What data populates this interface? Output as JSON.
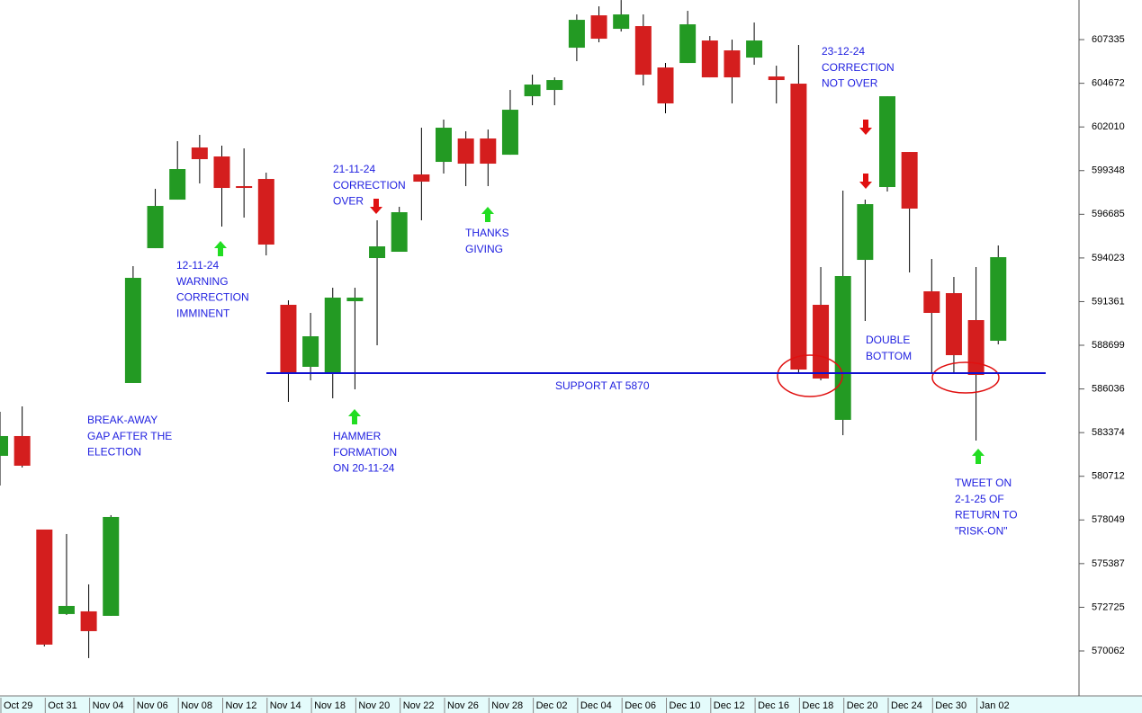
{
  "chart_data": {
    "type": "candlestick",
    "categories": [
      "Oct 29",
      null,
      "Oct 31",
      null,
      "Nov 04",
      null,
      "Nov 06",
      null,
      "Nov 08",
      null,
      "Nov 12",
      null,
      "Nov 14",
      null,
      "Nov 18",
      null,
      "Nov 20",
      null,
      "Nov 22",
      null,
      "Nov 26",
      null,
      "Nov 28",
      null,
      "Dec 02",
      null,
      "Dec 04",
      null,
      "Dec 06",
      null,
      "Dec 10",
      null,
      "Dec 12",
      null,
      "Dec 16",
      null,
      "Dec 18",
      null,
      "Dec 20",
      null,
      "Dec 24",
      null,
      "Dec 30",
      null,
      "Jan 02",
      null
    ],
    "open": [
      581958,
      583164,
      577464,
      572312,
      572476,
      572202,
      586398,
      594619,
      597579,
      600758,
      600210,
      598402,
      598840,
      591166,
      587385,
      587001,
      591385,
      594016,
      594400,
      599114,
      599881,
      601306,
      601306,
      600317,
      603882,
      604266,
      606842,
      608815,
      607993,
      608158,
      605636,
      605910,
      607281,
      606678,
      606239,
      605088,
      604650,
      591166,
      584151,
      593906,
      598347,
      600484,
      591988,
      591878,
      590234,
      588973
    ],
    "high": [
      584644,
      584973,
      577464,
      577190,
      574121,
      578341,
      593522,
      598237,
      601142,
      601526,
      600868,
      600703,
      599224,
      591440,
      590673,
      592207,
      592207,
      596318,
      597141,
      601964,
      602457,
      601745,
      601854,
      604266,
      605198,
      605033,
      608870,
      609363,
      609747,
      608870,
      605910,
      609089,
      607555,
      607335,
      608377,
      605746,
      607007,
      593467,
      598127,
      597579,
      603882,
      600484,
      593961,
      592865,
      593467,
      594784
    ],
    "low": [
      580149,
      581246,
      570338,
      572257,
      569626,
      572202,
      586398,
      594619,
      597579,
      598566,
      595935,
      596483,
      594180,
      585247,
      586562,
      585466,
      586014,
      588699,
      594400,
      596318,
      599169,
      598402,
      598402,
      600317,
      603334,
      603334,
      606020,
      607171,
      607829,
      604540,
      602841,
      605910,
      605033,
      603444,
      605801,
      603444,
      587001,
      586562,
      583219,
      590179,
      598072,
      593139,
      587001,
      587001,
      582890,
      588754
    ],
    "close": [
      583164,
      581355,
      570448,
      572805,
      571270,
      578231,
      592810,
      597195,
      599443,
      600046,
      598292,
      598292,
      594839,
      587055,
      589247,
      591604,
      591604,
      594729,
      596812,
      598675,
      601964,
      599772,
      599772,
      603060,
      604595,
      604869,
      608541,
      607390,
      608870,
      605198,
      603444,
      608267,
      605033,
      605033,
      607281,
      604869,
      587220,
      586672,
      592920,
      597305,
      603882,
      597031,
      590673,
      588096,
      586891,
      594071
    ],
    "up_color": "#239a23",
    "down_color": "#d41e1e",
    "ylim": [
      567430,
      609750
    ],
    "yticks": [
      570062,
      572725,
      575387,
      578049,
      580712,
      583374,
      586036,
      588699,
      591361,
      594023,
      596685,
      599348,
      602010,
      604672,
      607335
    ],
    "support": {
      "value": 587000,
      "label": "SUPPORT AT 5870",
      "color": "#1010d0"
    },
    "annotations": [
      {
        "lines": [
          "BREAK-AWAY",
          "GAP AFTER THE",
          "ELECTION"
        ]
      },
      {
        "lines": [
          "12-11-24",
          "WARNING",
          "CORRECTION",
          "IMMINENT"
        ]
      },
      {
        "lines": [
          "21-11-24",
          "CORRECTION",
          "OVER"
        ]
      },
      {
        "lines": [
          "HAMMER",
          "FORMATION",
          "ON 20-11-24"
        ]
      },
      {
        "lines": [
          "THANKS",
          "GIVING"
        ]
      },
      {
        "lines": [
          "23-12-24",
          "CORRECTION",
          "NOT OVER"
        ]
      },
      {
        "lines": [
          "DOUBLE",
          "BOTTOM"
        ]
      },
      {
        "lines": [
          "TWEET ON",
          "2-1-25 OF",
          "RETURN TO",
          "\"RISK-ON\""
        ]
      }
    ]
  }
}
